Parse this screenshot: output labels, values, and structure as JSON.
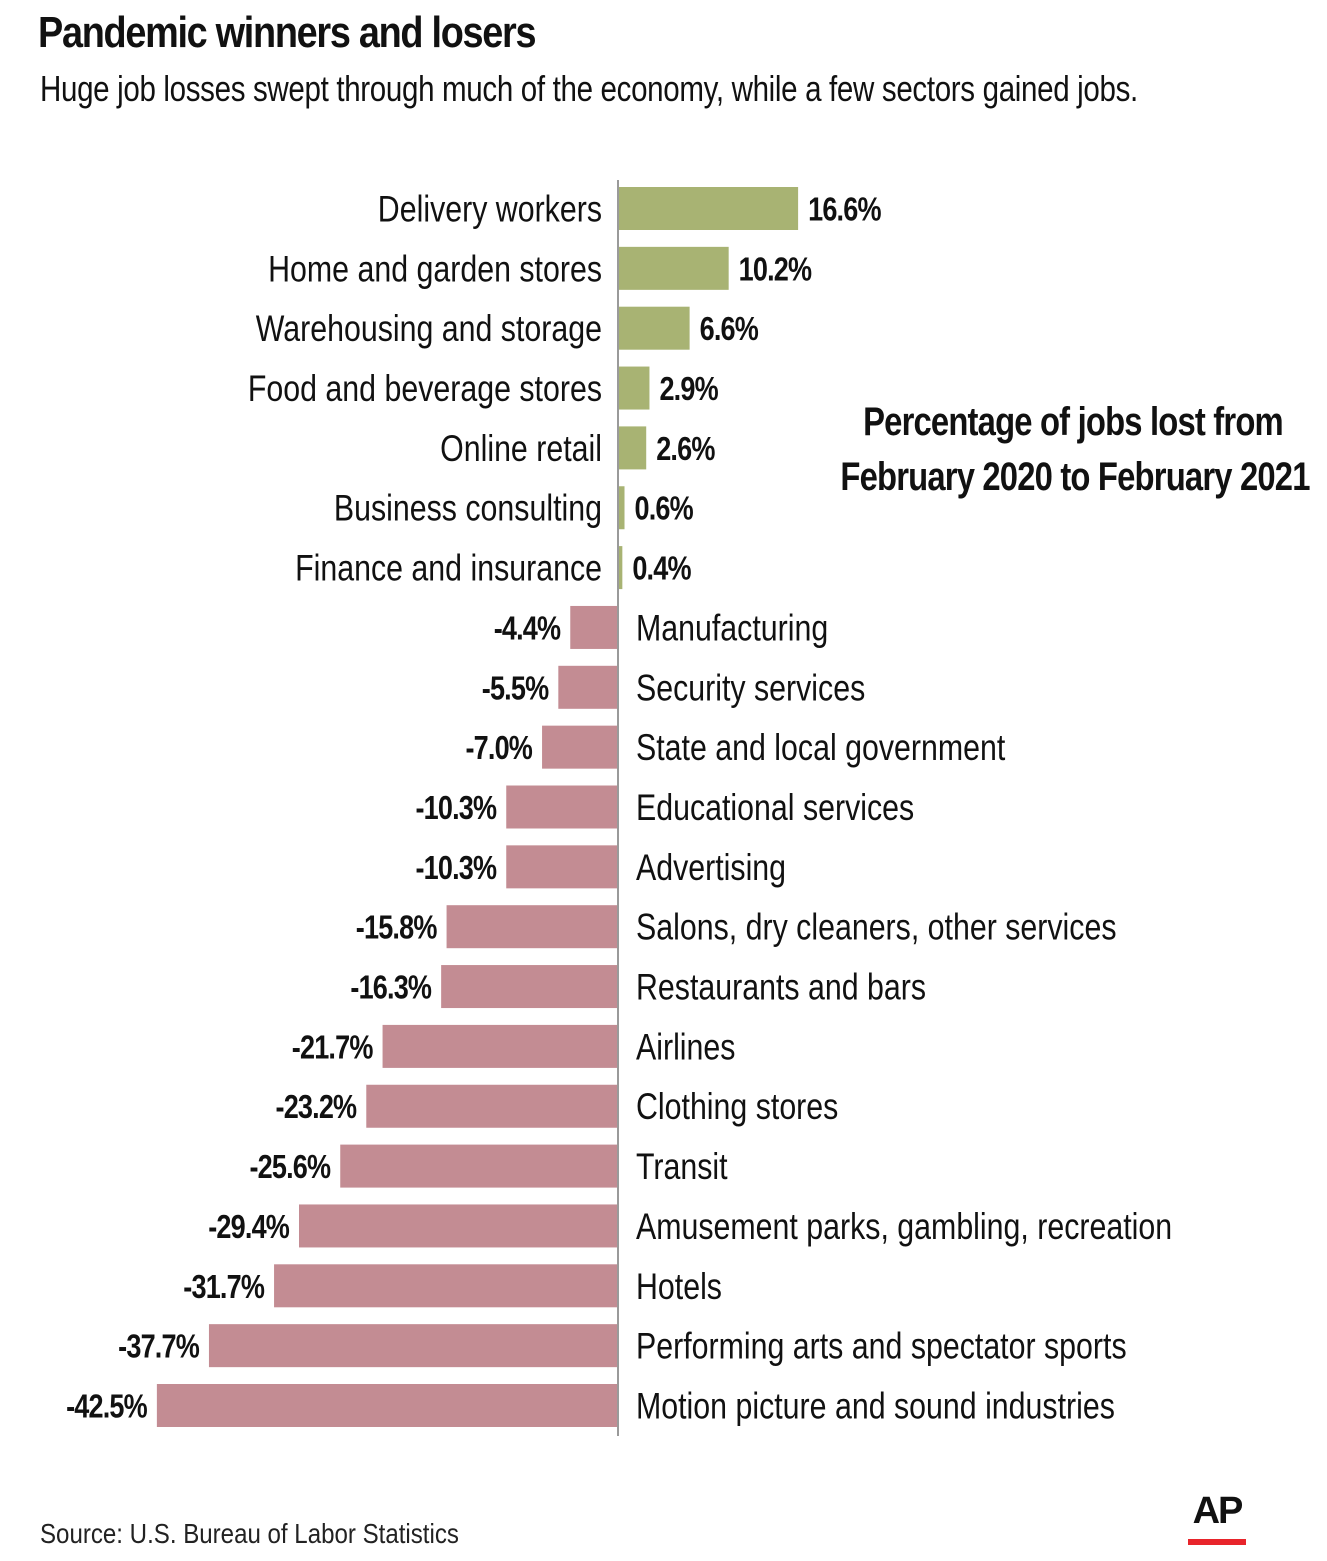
{
  "header": {
    "title": "Pandemic winners and losers",
    "subtitle": "Huge job losses swept through much of the economy, while a few sectors gained jobs."
  },
  "chart_data": {
    "type": "bar",
    "orientation": "horizontal",
    "annotation": [
      "Percentage of jobs lost from",
      "February 2020 to February 2021"
    ],
    "categories": [
      "Delivery workers",
      "Home and garden stores",
      "Warehousing and storage",
      "Food and beverage stores",
      "Online retail",
      "Business consulting",
      "Finance and insurance",
      "Manufacturing",
      "Security services",
      "State and local government",
      "Educational services",
      "Advertising",
      "Salons, dry cleaners, other services",
      "Restaurants and bars",
      "Airlines",
      "Clothing stores",
      "Transit",
      "Amusement parks, gambling, recreation",
      "Hotels",
      "Performing arts and spectator sports",
      "Motion picture and sound industries"
    ],
    "values": [
      16.6,
      10.2,
      6.6,
      2.9,
      2.6,
      0.6,
      0.4,
      -4.4,
      -5.5,
      -7.0,
      -10.3,
      -10.3,
      -15.8,
      -16.3,
      -21.7,
      -23.2,
      -25.6,
      -29.4,
      -31.7,
      -37.7,
      -42.5
    ],
    "value_labels": [
      "16.6%",
      "10.2%",
      "6.6%",
      "2.9%",
      "2.6%",
      "0.6%",
      "0.4%",
      "-4.4%",
      "-5.5%",
      "-7.0%",
      "-10.3%",
      "-10.3%",
      "-15.8%",
      "-16.3%",
      "-21.7%",
      "-23.2%",
      "-25.6%",
      "-29.4%",
      "-31.7%",
      "-37.7%",
      "-42.5%"
    ],
    "unit": "%",
    "xlim": [
      -42.5,
      16.6
    ],
    "colors": {
      "positive": "#a8b373",
      "negative": "#c38c93",
      "axis": "#9a9a9a"
    }
  },
  "footer": {
    "source": "Source: U.S. Bureau of Labor Statistics",
    "logo_text": "AP",
    "logo_accent": "#e8242b"
  }
}
